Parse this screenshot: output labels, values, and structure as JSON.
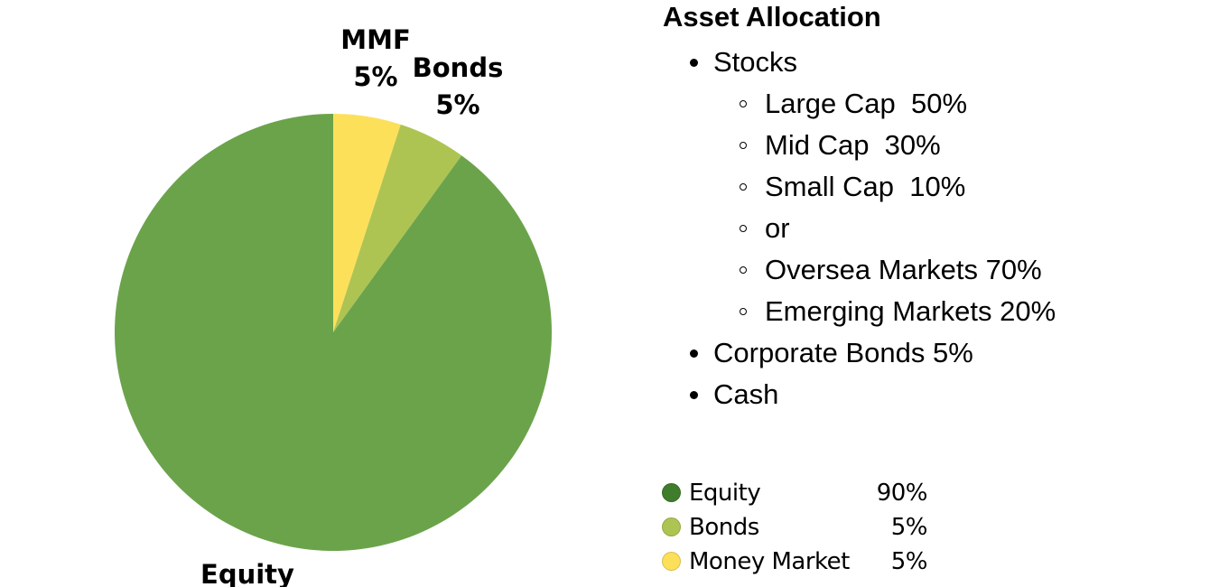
{
  "chart_data": {
    "type": "pie",
    "slices": [
      {
        "key": "mmf",
        "label": "MMF",
        "value_label": "5%",
        "value": 5,
        "color": "#fde05a"
      },
      {
        "key": "bonds",
        "label": "Bonds",
        "value_label": "5%",
        "value": 5,
        "color": "#aec452"
      },
      {
        "key": "equity",
        "label": "Equity",
        "value_label": "",
        "value": 90,
        "color": "#6ba34b"
      }
    ],
    "start_angle": "12 o'clock, clockwise"
  },
  "allocation": {
    "title": "Asset Allocation",
    "items": [
      {
        "label": "Stocks",
        "subitems": [
          {
            "label": "Large Cap  50%"
          },
          {
            "label": "Mid Cap  30%"
          },
          {
            "label": "Small Cap  10%"
          },
          {
            "label": "or"
          },
          {
            "label": "Oversea Markets 70%"
          },
          {
            "label": "Emerging Markets 20%"
          }
        ]
      },
      {
        "label": "Corporate Bonds 5%"
      },
      {
        "label": "Cash"
      }
    ]
  },
  "legend": {
    "rows": [
      {
        "label": "Equity",
        "value": "90%",
        "color": "#3f7d2c"
      },
      {
        "label": "Bonds",
        "value": "5%",
        "color": "#aec452"
      },
      {
        "label": "Money Market",
        "value": "5%",
        "color": "#fde05a"
      }
    ]
  }
}
